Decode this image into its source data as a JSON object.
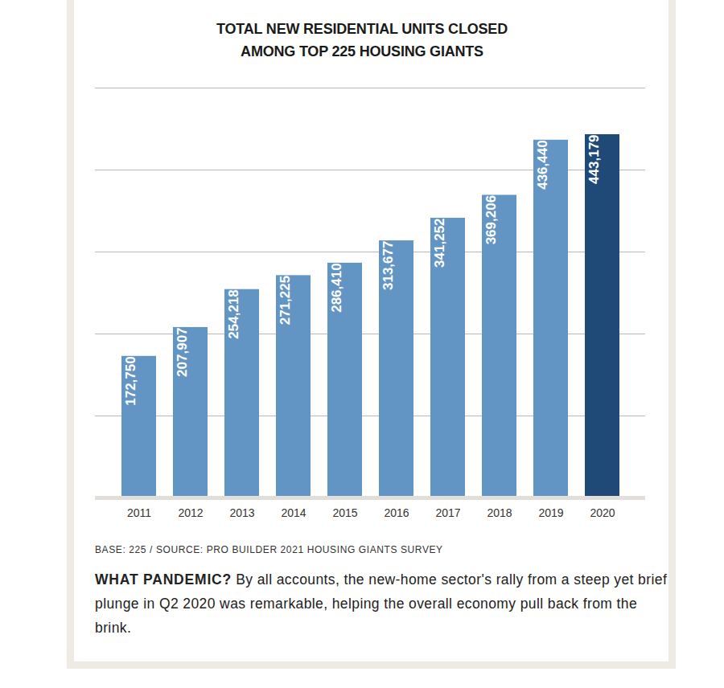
{
  "chart_data": {
    "type": "bar",
    "title": "TOTAL NEW RESIDENTIAL UNITS CLOSED\nAMONG TOP 225 HOUSING GIANTS",
    "source": "BASE: 225 / SOURCE: PRO BUILDER 2021 HOUSING GIANTS SURVEY",
    "caption_title": "WHAT PANDEMIC?",
    "caption": "By all accounts, the new-home sector's rally from a steep yet brief plunge in Q2 2020 was remarkable, helping the overall economy pull back from the brink.",
    "categories": [
      "2011",
      "2012",
      "2013",
      "2014",
      "2015",
      "2016",
      "2017",
      "2018",
      "2019",
      "2020"
    ],
    "values": [
      172750,
      207907,
      254218,
      271225,
      286410,
      313677,
      341252,
      369206,
      436440,
      443179
    ],
    "value_labels": [
      "172,750",
      "207,907",
      "254,218",
      "271,225",
      "286,410",
      "313,677",
      "341,252",
      "369,206",
      "436,440",
      "443,179"
    ],
    "colors": [
      "#6395c4",
      "#6395c4",
      "#6395c4",
      "#6395c4",
      "#6395c4",
      "#6395c4",
      "#6395c4",
      "#6395c4",
      "#6395c4",
      "#1f4a78"
    ],
    "ylim": [
      0,
      500000
    ],
    "yticks": [
      0,
      100000,
      200000,
      300000,
      400000,
      500000
    ],
    "grid": true,
    "data_labels": true,
    "tick_labels": "x"
  }
}
